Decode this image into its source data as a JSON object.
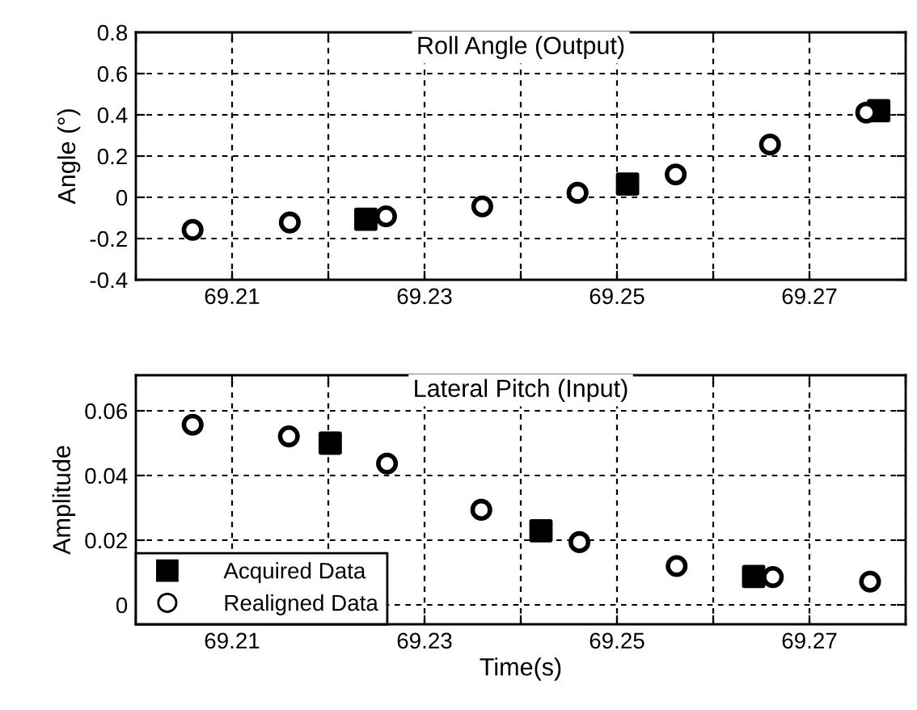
{
  "chart_data": [
    {
      "type": "scatter",
      "title": "Roll Angle (Output)",
      "ylabel": "Angle (°)",
      "xlim": [
        69.2,
        69.28
      ],
      "ylim": [
        -0.4,
        0.8
      ],
      "xticks": [
        {
          "value": 69.2,
          "label": null
        },
        69.21,
        {
          "value": 69.22,
          "label": null
        },
        69.23,
        {
          "value": 69.24,
          "label": null
        },
        69.25,
        {
          "value": 69.26,
          "label": null
        },
        69.27,
        {
          "value": 69.28,
          "label": null
        }
      ],
      "yticks": [
        -0.4,
        -0.2,
        0,
        0.2,
        0.4,
        0.6,
        0.8
      ],
      "grid": true,
      "series": [
        {
          "color": "#000000",
          "marker": "square",
          "x": [
            69.2239,
            69.2511,
            69.2772
          ],
          "values": [
            -0.106,
            0.064,
            0.42
          ]
        },
        {
          "color": "#000000",
          "marker": "circle",
          "x": [
            69.2059,
            69.216,
            69.226,
            69.236,
            69.2459,
            69.2561,
            69.2659,
            69.2759
          ],
          "values": [
            -0.158,
            -0.122,
            -0.092,
            -0.044,
            0.022,
            0.111,
            0.256,
            0.411
          ]
        }
      ]
    },
    {
      "type": "scatter",
      "title": "Lateral Pitch (Input)",
      "ylabel": "Amplitude",
      "xlabel": "Time(s)",
      "xlim": [
        69.2,
        69.28
      ],
      "ylim": [
        -0.006,
        0.071
      ],
      "xticks": [
        {
          "value": 69.2,
          "label": null
        },
        69.21,
        {
          "value": 69.22,
          "label": null
        },
        69.23,
        {
          "value": 69.24,
          "label": null
        },
        69.25,
        {
          "value": 69.26,
          "label": null
        },
        69.27,
        {
          "value": 69.28,
          "label": null
        }
      ],
      "yticks": [
        0,
        0.02,
        0.04,
        0.06
      ],
      "grid": true,
      "legend": "bottom left",
      "series": [
        {
          "name": "Acquired Data",
          "color": "#000000",
          "marker": "square",
          "x": [
            69.2202,
            69.2421,
            69.2642
          ],
          "values": [
            0.05,
            0.0229,
            0.0088
          ]
        },
        {
          "name": "Realigned Data",
          "color": "#000000",
          "marker": "circle",
          "x": [
            69.2059,
            69.2159,
            69.2261,
            69.2359,
            69.2461,
            69.2562,
            69.2662,
            69.2763
          ],
          "values": [
            0.0557,
            0.0521,
            0.0437,
            0.0294,
            0.0194,
            0.012,
            0.0086,
            0.0072
          ]
        }
      ]
    }
  ]
}
